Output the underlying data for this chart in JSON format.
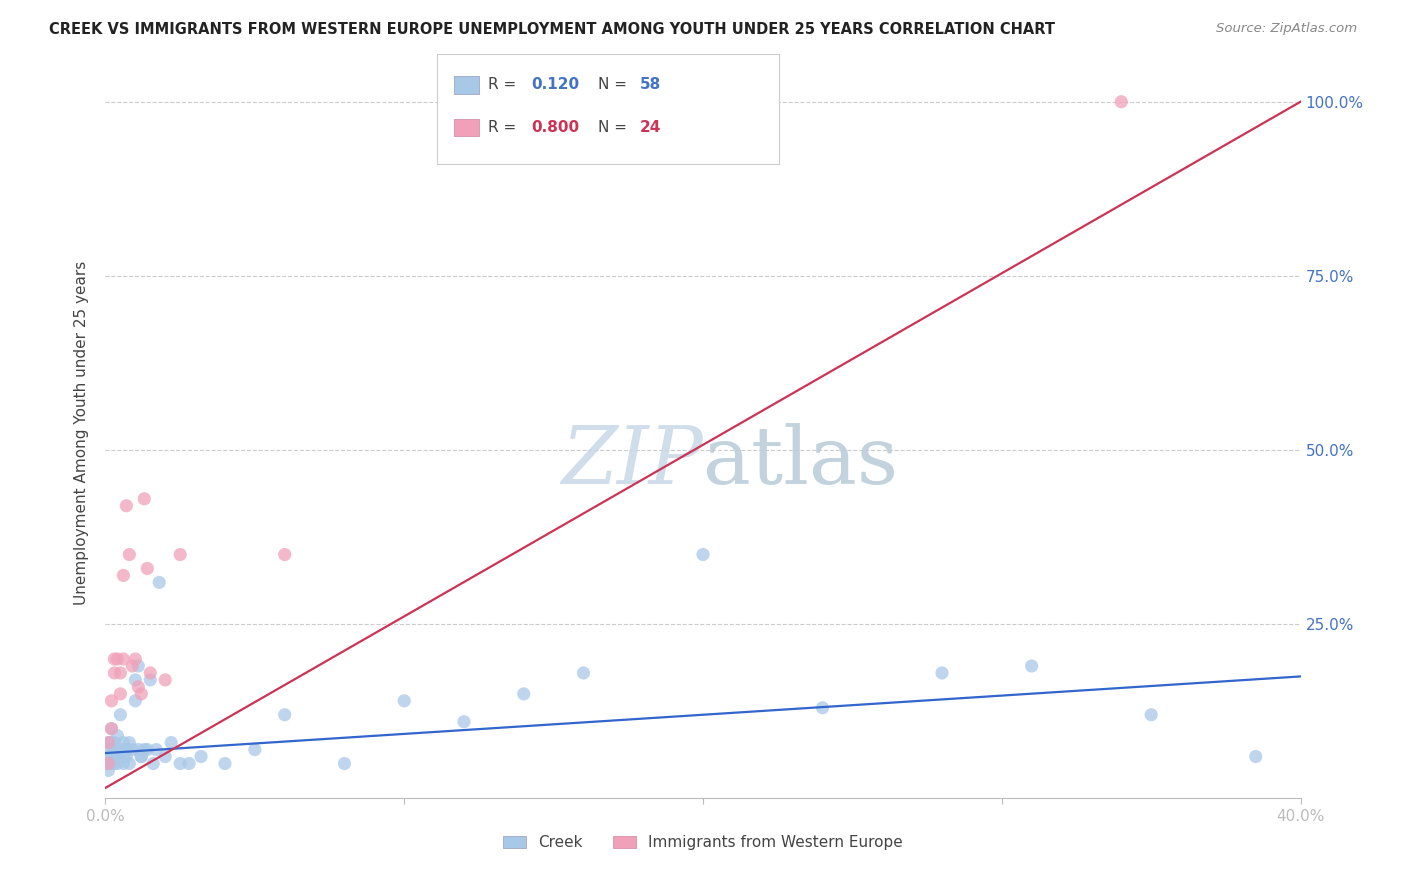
{
  "title": "CREEK VS IMMIGRANTS FROM WESTERN EUROPE UNEMPLOYMENT AMONG YOUTH UNDER 25 YEARS CORRELATION CHART",
  "source": "Source: ZipAtlas.com",
  "ylabel": "Unemployment Among Youth under 25 years",
  "xmin": 0.0,
  "xmax": 0.4,
  "ymin": 0.0,
  "ymax": 1.05,
  "legend_blue_R": "0.120",
  "legend_blue_N": "58",
  "legend_pink_R": "0.800",
  "legend_pink_N": "24",
  "blue_color": "#a8c8e8",
  "pink_color": "#f0a0b8",
  "blue_line_color": "#3366cc",
  "pink_line_color": "#cc3355",
  "watermark": "ZIPatlas",
  "watermark_color": "#dce8f0",
  "blue_x": [
    0.001,
    0.001,
    0.001,
    0.001,
    0.002,
    0.002,
    0.002,
    0.002,
    0.002,
    0.003,
    0.003,
    0.003,
    0.003,
    0.004,
    0.004,
    0.004,
    0.005,
    0.005,
    0.005,
    0.006,
    0.006,
    0.006,
    0.007,
    0.007,
    0.008,
    0.008,
    0.009,
    0.01,
    0.01,
    0.011,
    0.011,
    0.012,
    0.012,
    0.013,
    0.014,
    0.015,
    0.016,
    0.017,
    0.018,
    0.02,
    0.022,
    0.025,
    0.028,
    0.032,
    0.04,
    0.05,
    0.06,
    0.08,
    0.1,
    0.12,
    0.14,
    0.16,
    0.2,
    0.24,
    0.28,
    0.31,
    0.35,
    0.385
  ],
  "blue_y": [
    0.06,
    0.04,
    0.05,
    0.08,
    0.05,
    0.07,
    0.06,
    0.1,
    0.08,
    0.06,
    0.05,
    0.08,
    0.07,
    0.06,
    0.09,
    0.05,
    0.07,
    0.12,
    0.06,
    0.08,
    0.06,
    0.05,
    0.07,
    0.06,
    0.08,
    0.05,
    0.07,
    0.17,
    0.14,
    0.07,
    0.19,
    0.06,
    0.06,
    0.07,
    0.07,
    0.17,
    0.05,
    0.07,
    0.31,
    0.06,
    0.08,
    0.05,
    0.05,
    0.06,
    0.05,
    0.07,
    0.12,
    0.05,
    0.14,
    0.11,
    0.15,
    0.18,
    0.35,
    0.13,
    0.18,
    0.19,
    0.12,
    0.06
  ],
  "pink_x": [
    0.001,
    0.001,
    0.002,
    0.002,
    0.003,
    0.003,
    0.004,
    0.005,
    0.005,
    0.006,
    0.006,
    0.007,
    0.008,
    0.009,
    0.01,
    0.011,
    0.012,
    0.013,
    0.014,
    0.015,
    0.02,
    0.025,
    0.06,
    0.34
  ],
  "pink_y": [
    0.05,
    0.08,
    0.1,
    0.14,
    0.18,
    0.2,
    0.2,
    0.15,
    0.18,
    0.32,
    0.2,
    0.42,
    0.35,
    0.19,
    0.2,
    0.16,
    0.15,
    0.43,
    0.33,
    0.18,
    0.17,
    0.35,
    0.35,
    1.0
  ],
  "pink_line_x0": 0.0,
  "pink_line_y0": 0.015,
  "pink_line_x1": 0.4,
  "pink_line_y1": 1.0,
  "blue_line_x0": 0.0,
  "blue_line_y0": 0.065,
  "blue_line_x1": 0.4,
  "blue_line_y1": 0.175
}
